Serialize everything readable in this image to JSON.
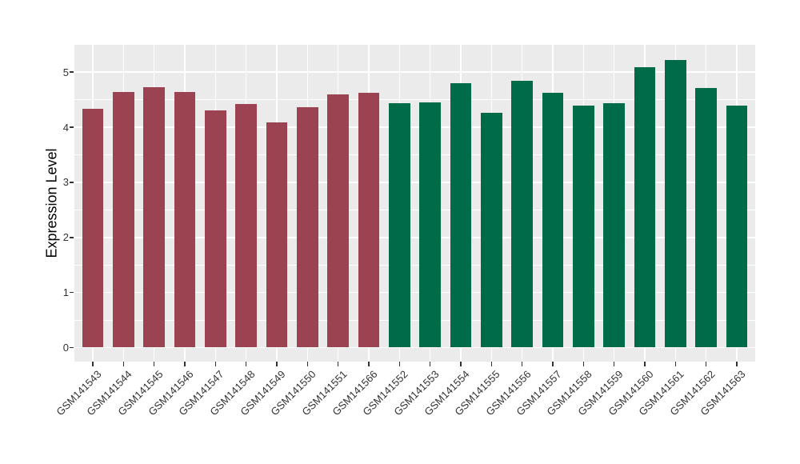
{
  "figure": {
    "background": "#FFFFFF"
  },
  "chart_data": {
    "type": "bar",
    "title": "",
    "xlabel": "",
    "ylabel": "Expression Level",
    "categories": [
      "GSM141543",
      "GSM141544",
      "GSM141545",
      "GSM141546",
      "GSM141547",
      "GSM141548",
      "GSM141549",
      "GSM141550",
      "GSM141551",
      "GSM141566",
      "GSM141552",
      "GSM141553",
      "GSM141554",
      "GSM141555",
      "GSM141556",
      "GSM141557",
      "GSM141558",
      "GSM141559",
      "GSM141560",
      "GSM141561",
      "GSM141562",
      "GSM141563"
    ],
    "values": [
      4.33,
      4.64,
      4.73,
      4.64,
      4.3,
      4.42,
      4.09,
      4.37,
      4.59,
      4.63,
      4.44,
      4.45,
      4.8,
      4.27,
      4.85,
      4.62,
      4.4,
      4.44,
      5.09,
      5.22,
      4.71,
      4.39
    ],
    "bar_colors": [
      "#9B4351",
      "#9B4351",
      "#9B4351",
      "#9B4351",
      "#9B4351",
      "#9B4351",
      "#9B4351",
      "#9B4351",
      "#9B4351",
      "#9B4351",
      "#006B48",
      "#006B48",
      "#006B48",
      "#006B48",
      "#006B48",
      "#006B48",
      "#006B48",
      "#006B48",
      "#006B48",
      "#006B48",
      "#006B48",
      "#006B48"
    ],
    "group_colors": {
      "left_group_maroon": "#9B4351",
      "right_group_green": "#006B48"
    },
    "y_major_ticks": [
      0,
      1,
      2,
      3,
      4,
      5
    ],
    "y_minor_ticks": [
      0.5,
      1.5,
      2.5,
      3.5,
      4.5
    ],
    "ylim": [
      0,
      5.5
    ],
    "grid": true,
    "legend": "none",
    "panel_background": "#EBEBEB",
    "gridline_color": "#FFFFFF",
    "tick_label_color": "#333333",
    "axis_title_color": "#000000"
  }
}
